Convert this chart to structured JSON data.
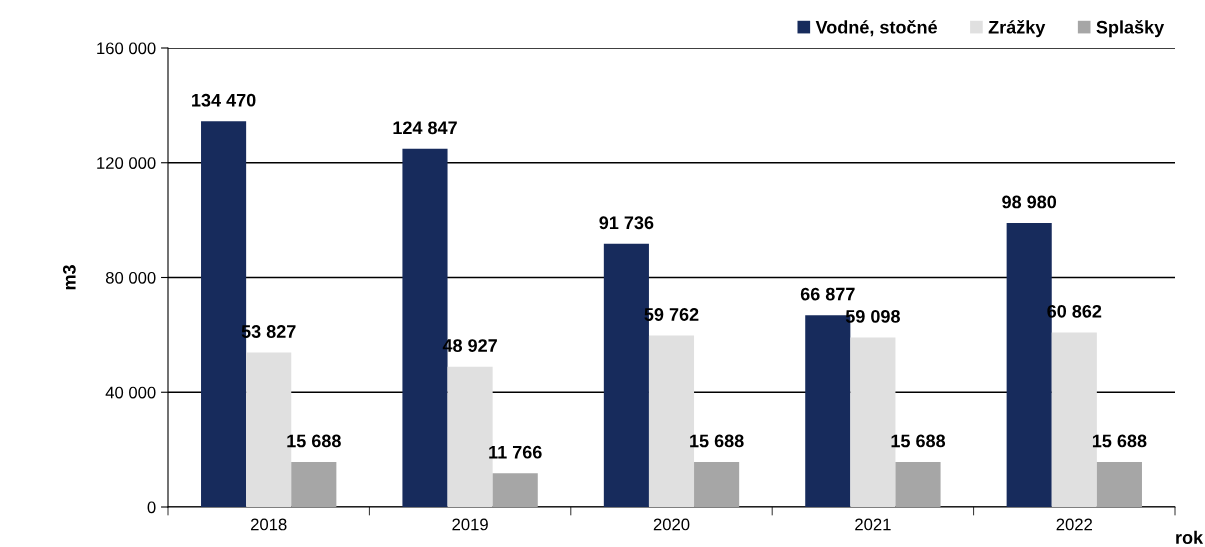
{
  "chart_data": {
    "type": "bar",
    "ylabel": "m3",
    "xlabel": "rok",
    "categories": [
      "2018",
      "2019",
      "2020",
      "2021",
      "2022"
    ],
    "series": [
      {
        "name": "Vodné, stočné",
        "color": "#172b5c",
        "values": [
          134470,
          124847,
          91736,
          66877,
          98980
        ]
      },
      {
        "name": "Zrážky",
        "color": "#e0e0e0",
        "values": [
          53827,
          48927,
          59762,
          59098,
          60862
        ]
      },
      {
        "name": "Splašky",
        "color": "#a6a6a6",
        "values": [
          15688,
          11766,
          15688,
          15688,
          15688
        ]
      }
    ],
    "ylim": [
      0,
      160000
    ],
    "yticks": [
      0,
      {
        "value": 40000,
        "label": "40 000"
      },
      {
        "value": 80000,
        "label": "80 000"
      },
      {
        "value": 120000,
        "label": "120 000"
      },
      {
        "value": 160000,
        "label": "160 000"
      }
    ],
    "grid": "y",
    "legend": "top right",
    "data_labels": true
  }
}
